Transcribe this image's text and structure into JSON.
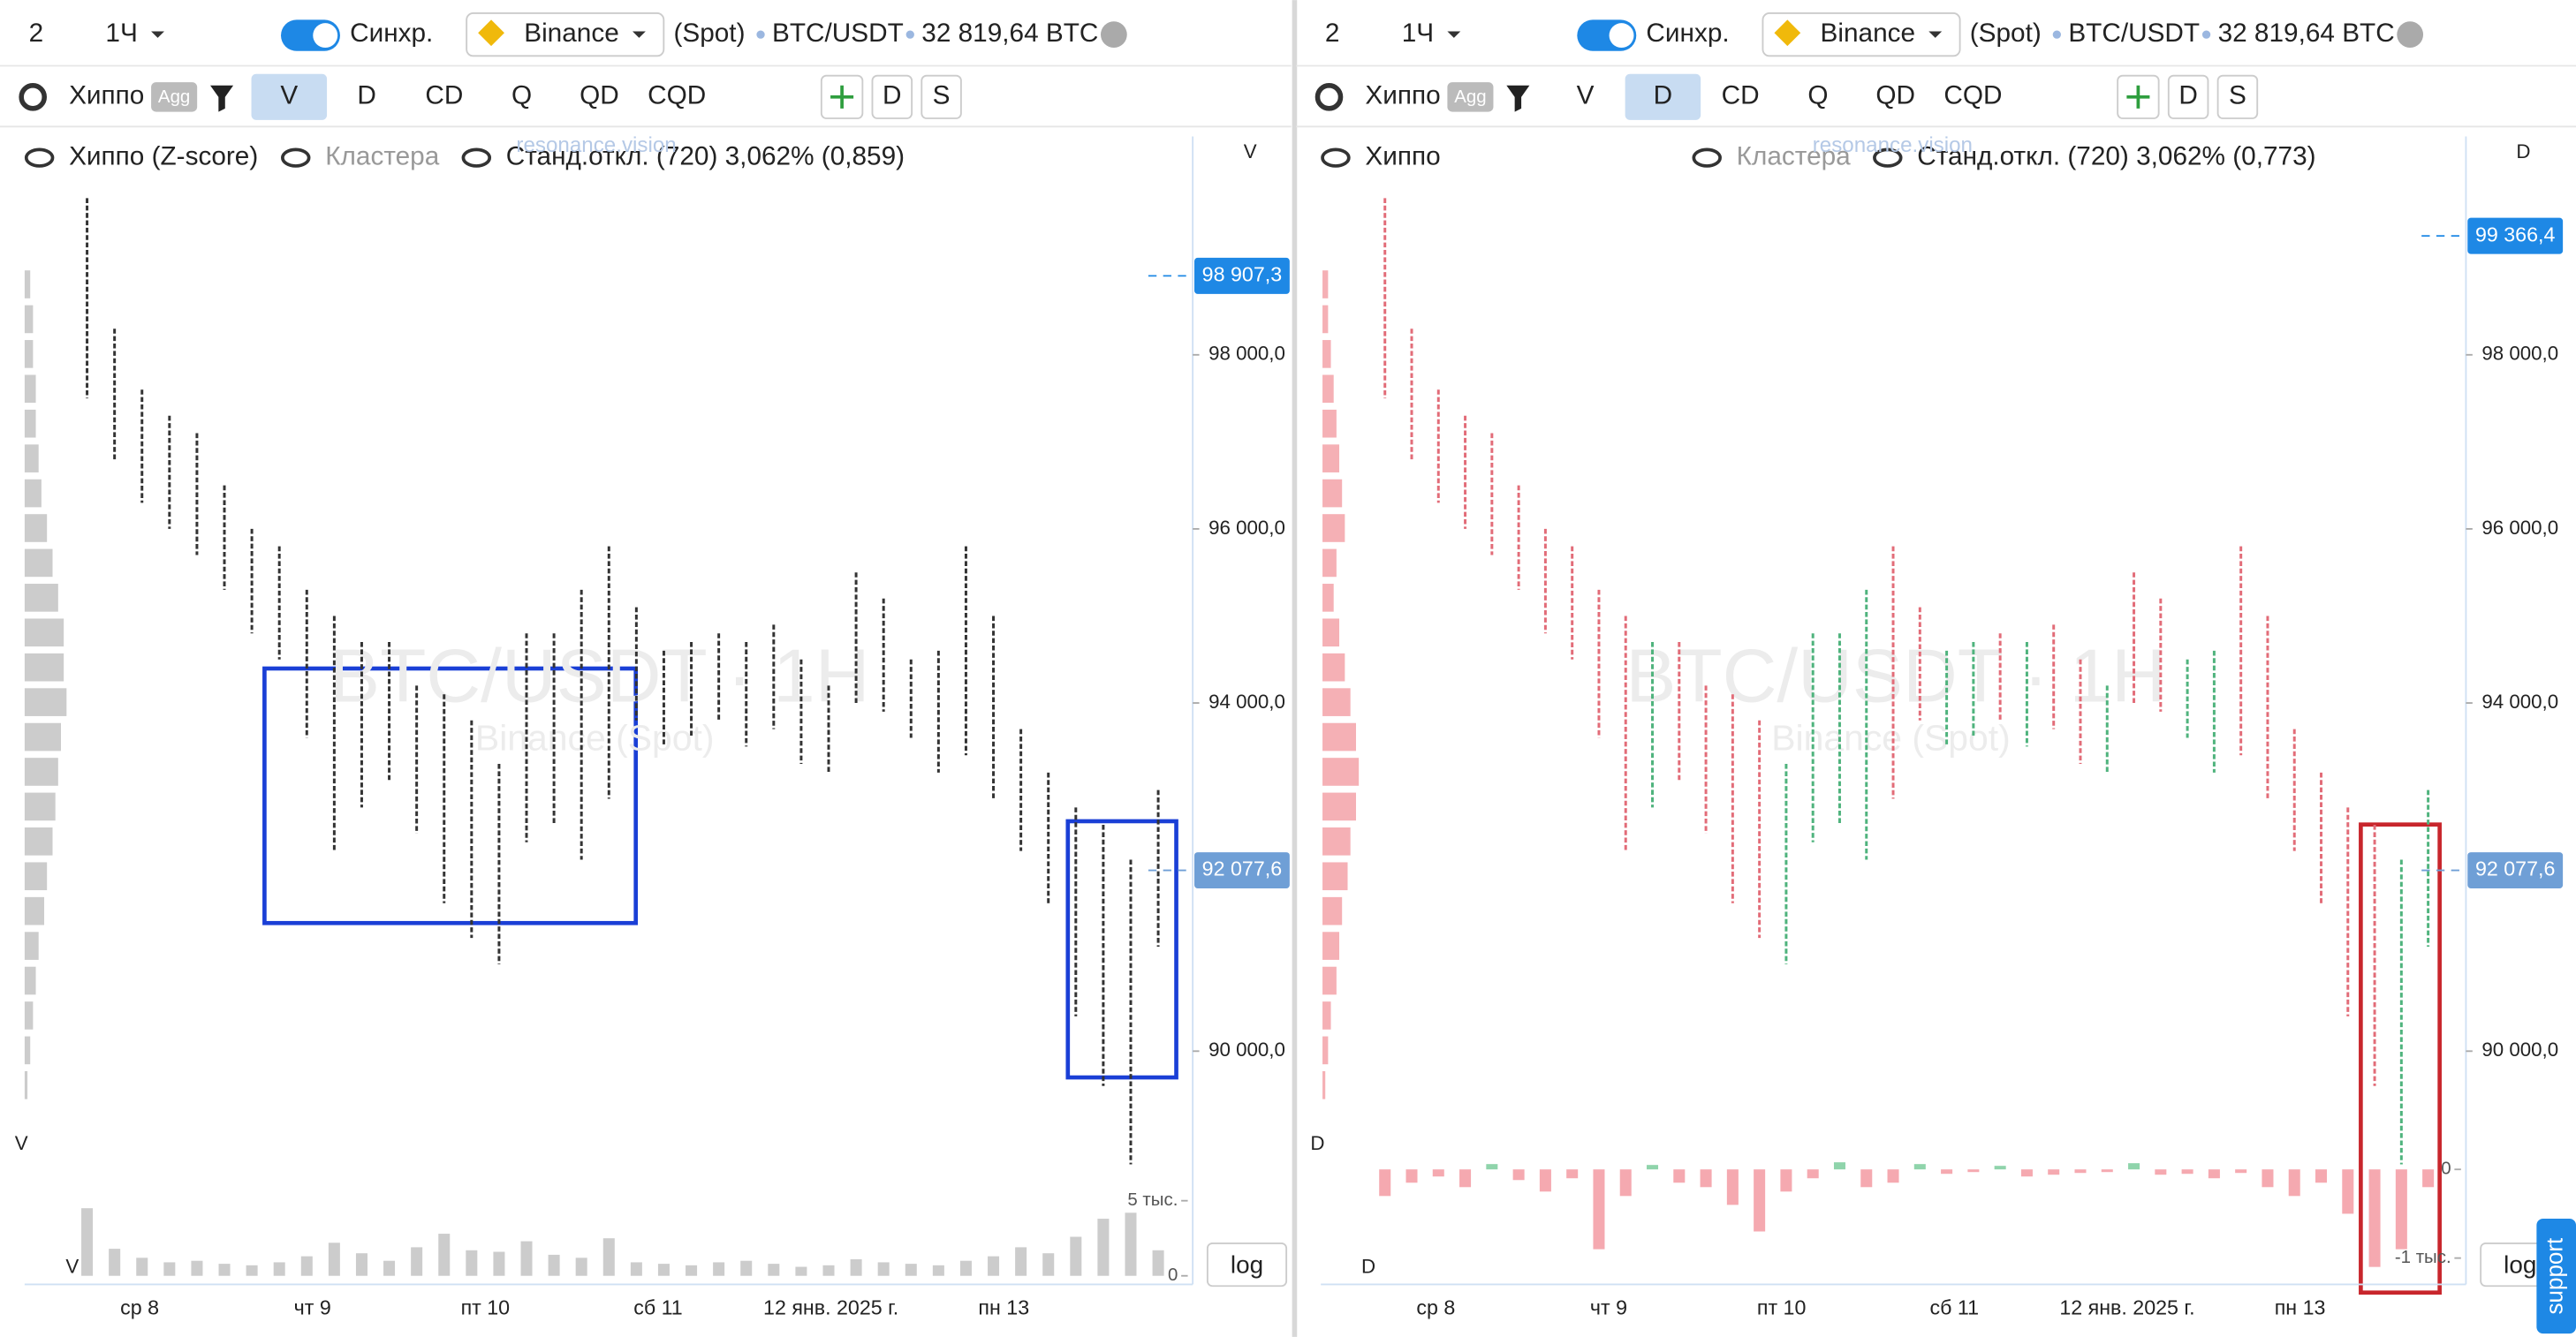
{
  "panels": [
    {
      "toolbar": {
        "layout": "2",
        "interval": "1Ч",
        "sync": "Синхр.",
        "exchange": "Binance",
        "market": "(Spot)",
        "pair": "BTC/USDT",
        "volume": "32 819,64 BTC"
      },
      "tabs": {
        "indicator": "Хиппо",
        "agg": "Agg",
        "items": [
          "V",
          "D",
          "CD",
          "Q",
          "QD",
          "CQD"
        ],
        "active": "V",
        "extra": [
          "D",
          "S"
        ]
      },
      "legend": [
        "Хиппо (Z-score)",
        "Кластера",
        "Станд.откл. (720) 3,062% (0,859)"
      ],
      "brand": "resonance.vision",
      "watermark": "BTC/USDT · 1H",
      "watermark_sub": "Binance (Spot)",
      "mode_label": "V",
      "ylim": [
        89000,
        100500
      ],
      "yticks": [
        {
          "value": 90000,
          "label": "90 000,0"
        },
        {
          "value": 94000,
          "label": "94 000,0"
        },
        {
          "value": 96000,
          "label": "96 000,0"
        },
        {
          "value": 98000,
          "label": "98 000,0"
        }
      ],
      "markers": [
        {
          "value": 98907.3,
          "label": "98 907,3"
        },
        {
          "value": 92077.6,
          "label": "92 077,6"
        }
      ],
      "x_labels": [
        "ср 8",
        "чт 9",
        "пт 10",
        "сб 11",
        "12 янв. 2025 г.",
        "пн 13"
      ],
      "highs": [
        99800,
        98300,
        97600,
        97300,
        97100,
        96500,
        96000,
        95800,
        95300,
        95000,
        94700,
        94700,
        94200,
        94100,
        93800,
        93300,
        94800,
        94800,
        95300,
        95800,
        95100,
        94600,
        94700,
        94800,
        94700,
        94900,
        94500,
        94200,
        95500,
        95200,
        94500,
        94600,
        95800,
        95000,
        93700,
        93200,
        92800,
        92600,
        92200,
        93000
      ],
      "lows": [
        97500,
        96800,
        96300,
        96000,
        95700,
        95300,
        94800,
        94500,
        93600,
        92300,
        92800,
        93100,
        92500,
        91700,
        91300,
        91000,
        92400,
        92600,
        92200,
        92900,
        93800,
        93500,
        93600,
        93800,
        93500,
        93700,
        93300,
        93200,
        94000,
        93900,
        93600,
        93200,
        93400,
        92900,
        92300,
        91700,
        90400,
        89600,
        88700,
        91200
      ],
      "profile": {
        "prices": [
          98800,
          98400,
          98000,
          97600,
          97200,
          96800,
          96400,
          96000,
          95600,
          95200,
          94800,
          94400,
          94000,
          93600,
          93200,
          92800,
          92400,
          92000,
          91600,
          91200,
          90800,
          90400,
          90000,
          89600
        ],
        "values": [
          2,
          3,
          3,
          4,
          4,
          5,
          6,
          8,
          10,
          12,
          14,
          14,
          15,
          13,
          12,
          11,
          10,
          8,
          7,
          5,
          4,
          3,
          2,
          1
        ]
      },
      "sub": {
        "label": "V",
        "ylim": [
          0,
          5500
        ],
        "ticks": [
          0,
          {
            "value": 5000,
            "label": "5 тыс."
          }
        ],
        "values": [
          4500,
          1800,
          1200,
          900,
          1000,
          800,
          700,
          900,
          1300,
          2200,
          1500,
          1000,
          1900,
          2800,
          1700,
          1600,
          2300,
          1400,
          1200,
          2500,
          900,
          800,
          700,
          900,
          1000,
          800,
          600,
          700,
          1100,
          900,
          800,
          700,
          1000,
          1300,
          1900,
          1500,
          2600,
          3800,
          4200,
          1700
        ]
      },
      "log": "log"
    },
    {
      "toolbar": {
        "layout": "2",
        "interval": "1Ч",
        "sync": "Синхр.",
        "exchange": "Binance",
        "market": "(Spot)",
        "pair": "BTC/USDT",
        "volume": "32 819,64 BTC"
      },
      "tabs": {
        "indicator": "Хиппо",
        "agg": "Agg",
        "items": [
          "V",
          "D",
          "CD",
          "Q",
          "QD",
          "CQD"
        ],
        "active": "D",
        "extra": [
          "D",
          "S"
        ]
      },
      "legend": [
        "Хиппо",
        "Кластера",
        "Станд.откл. (720) 3,062% (0,773)"
      ],
      "brand": "resonance.vision",
      "watermark": "BTC/USDT · 1H",
      "watermark_sub": "Binance (Spot)",
      "mode_label": "D",
      "ylim": [
        89000,
        100500
      ],
      "yticks": [
        {
          "value": 90000,
          "label": "90 000,0"
        },
        {
          "value": 94000,
          "label": "94 000,0"
        },
        {
          "value": 96000,
          "label": "96 000,0"
        },
        {
          "value": 98000,
          "label": "98 000,0"
        }
      ],
      "markers": [
        {
          "value": 99366.4,
          "label": "99 366,4"
        },
        {
          "value": 92077.6,
          "label": "92 077,6"
        }
      ],
      "x_labels": [
        "ср 8",
        "чт 9",
        "пт 10",
        "сб 11",
        "12 янв. 2025 г.",
        "пн 13"
      ],
      "highs": [
        99800,
        98300,
        97600,
        97300,
        97100,
        96500,
        96000,
        95800,
        95300,
        95000,
        94700,
        94700,
        94200,
        94100,
        93800,
        93300,
        94800,
        94800,
        95300,
        95800,
        95100,
        94600,
        94700,
        94800,
        94700,
        94900,
        94500,
        94200,
        95500,
        95200,
        94500,
        94600,
        95800,
        95000,
        93700,
        93200,
        92800,
        92600,
        92200,
        93000
      ],
      "lows": [
        97500,
        96800,
        96300,
        96000,
        95700,
        95300,
        94800,
        94500,
        93600,
        92300,
        92800,
        93100,
        92500,
        91700,
        91300,
        91000,
        92400,
        92600,
        92200,
        92900,
        93800,
        93500,
        93600,
        93800,
        93500,
        93700,
        93300,
        93200,
        94000,
        93900,
        93600,
        93200,
        93400,
        92900,
        92300,
        91700,
        90400,
        89600,
        88700,
        91200
      ],
      "profile": {
        "prices": [
          98800,
          98400,
          98000,
          97600,
          97200,
          96800,
          96400,
          96000,
          95600,
          95200,
          94800,
          94400,
          94000,
          93600,
          93200,
          92800,
          92400,
          92000,
          91600,
          91200,
          90800,
          90400,
          90000,
          89600
        ],
        "values": [
          2,
          2,
          3,
          4,
          5,
          6,
          7,
          8,
          5,
          4,
          6,
          8,
          10,
          12,
          13,
          12,
          10,
          9,
          7,
          6,
          5,
          3,
          2,
          1
        ]
      },
      "sub": {
        "label": "D",
        "ylim": [
          -1200,
          400
        ],
        "ticks": [
          0,
          {
            "value": -1000,
            "label": "-1 тыс."
          }
        ],
        "values": [
          -300,
          -150,
          -80,
          -200,
          60,
          -120,
          -250,
          -100,
          -900,
          -300,
          50,
          -150,
          -200,
          -400,
          -700,
          -250,
          -100,
          80,
          -200,
          -150,
          60,
          -50,
          -30,
          40,
          -80,
          -60,
          -40,
          -30,
          70,
          -60,
          -50,
          -100,
          -40,
          -200,
          -300,
          -150,
          -500,
          -1100,
          -900,
          -200
        ]
      },
      "log": "log"
    }
  ],
  "support": "support"
}
